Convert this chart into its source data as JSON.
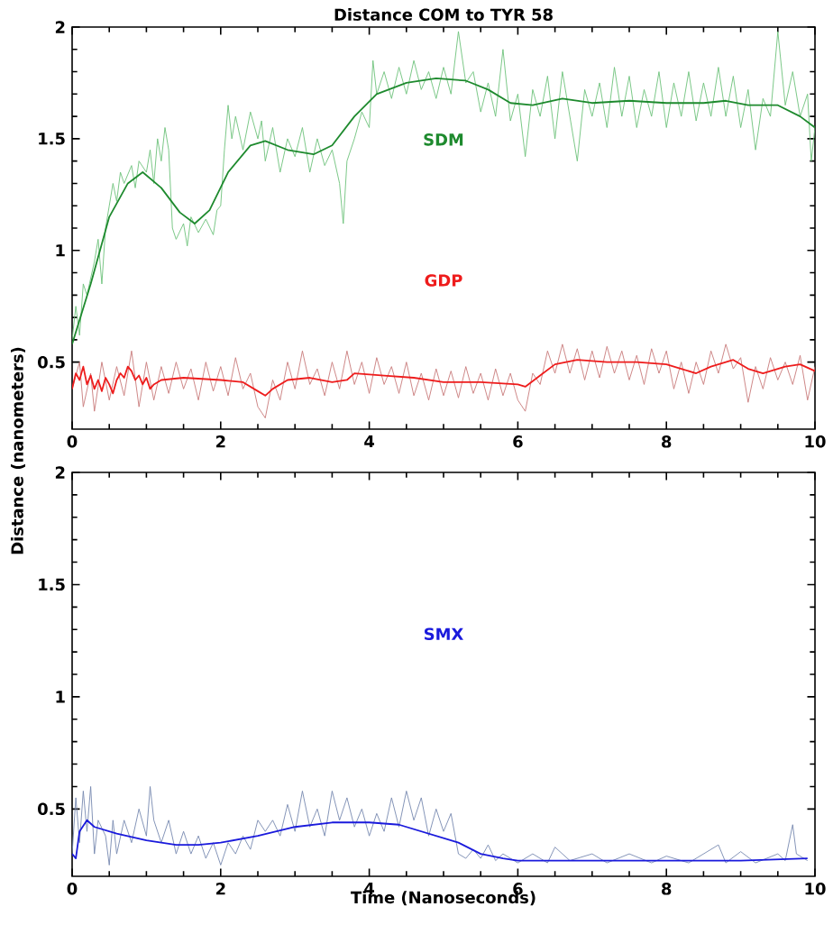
{
  "chart_data": [
    {
      "type": "line",
      "title": "Distance COM to TYR 58",
      "ylabel": "Distance (nanometers)",
      "xlim": [
        0,
        10
      ],
      "ylim": [
        0.2,
        2
      ],
      "xticks": [
        0,
        2,
        4,
        6,
        8,
        10
      ],
      "yticks": [
        0.5,
        1,
        1.5,
        2
      ],
      "series": [
        {
          "color": "#6cc17a",
          "x": [
            0,
            0.05,
            0.1,
            0.15,
            0.2,
            0.3,
            0.35,
            0.4,
            0.45,
            0.5,
            0.55,
            0.6,
            0.65,
            0.7,
            0.8,
            0.85,
            0.9,
            1.0,
            1.05,
            1.1,
            1.15,
            1.2,
            1.25,
            1.3,
            1.35,
            1.4,
            1.5,
            1.55,
            1.6,
            1.7,
            1.8,
            1.9,
            1.95,
            2.0,
            2.05,
            2.1,
            2.15,
            2.2,
            2.3,
            2.4,
            2.5,
            2.55,
            2.6,
            2.7,
            2.8,
            2.9,
            3.0,
            3.1,
            3.2,
            3.3,
            3.4,
            3.5,
            3.6,
            3.65,
            3.7,
            3.8,
            3.9,
            4.0,
            4.05,
            4.1,
            4.2,
            4.3,
            4.4,
            4.5,
            4.6,
            4.7,
            4.8,
            4.9,
            5.0,
            5.1,
            5.2,
            5.3,
            5.4,
            5.5,
            5.6,
            5.7,
            5.8,
            5.9,
            6.0,
            6.1,
            6.2,
            6.3,
            6.4,
            6.5,
            6.6,
            6.7,
            6.8,
            6.9,
            7.0,
            7.1,
            7.2,
            7.3,
            7.4,
            7.5,
            7.6,
            7.7,
            7.8,
            7.9,
            8.0,
            8.1,
            8.2,
            8.3,
            8.4,
            8.5,
            8.6,
            8.7,
            8.8,
            8.9,
            9.0,
            9.1,
            9.2,
            9.3,
            9.4,
            9.5,
            9.6,
            9.7,
            9.8,
            9.9,
            9.95,
            10
          ],
          "values": [
            0.6,
            0.75,
            0.62,
            0.85,
            0.8,
            0.95,
            1.05,
            0.85,
            1.1,
            1.2,
            1.3,
            1.22,
            1.35,
            1.3,
            1.38,
            1.28,
            1.4,
            1.35,
            1.45,
            1.3,
            1.5,
            1.4,
            1.55,
            1.45,
            1.1,
            1.05,
            1.12,
            1.02,
            1.15,
            1.08,
            1.14,
            1.07,
            1.18,
            1.2,
            1.45,
            1.65,
            1.5,
            1.6,
            1.45,
            1.62,
            1.5,
            1.58,
            1.4,
            1.55,
            1.35,
            1.5,
            1.42,
            1.55,
            1.35,
            1.5,
            1.38,
            1.45,
            1.3,
            1.12,
            1.4,
            1.5,
            1.62,
            1.55,
            1.85,
            1.7,
            1.8,
            1.68,
            1.82,
            1.7,
            1.85,
            1.72,
            1.8,
            1.68,
            1.82,
            1.7,
            1.98,
            1.75,
            1.8,
            1.62,
            1.75,
            1.6,
            1.9,
            1.58,
            1.7,
            1.42,
            1.72,
            1.6,
            1.78,
            1.5,
            1.8,
            1.6,
            1.4,
            1.72,
            1.6,
            1.75,
            1.55,
            1.82,
            1.6,
            1.78,
            1.55,
            1.72,
            1.6,
            1.8,
            1.55,
            1.75,
            1.6,
            1.8,
            1.58,
            1.75,
            1.6,
            1.82,
            1.6,
            1.78,
            1.55,
            1.72,
            1.45,
            1.68,
            1.6,
            1.98,
            1.65,
            1.8,
            1.6,
            1.7,
            1.4,
            1.55
          ]
        },
        {
          "name": "SDM",
          "color": "#1e8a2e",
          "x": [
            0,
            0.25,
            0.5,
            0.75,
            0.95,
            1.2,
            1.45,
            1.65,
            1.85,
            2.1,
            2.4,
            2.6,
            2.9,
            3.25,
            3.5,
            3.8,
            4.1,
            4.5,
            4.9,
            5.3,
            5.6,
            5.9,
            6.2,
            6.6,
            7.0,
            7.5,
            8.0,
            8.5,
            8.8,
            9.1,
            9.5,
            9.8,
            10
          ],
          "values": [
            0.58,
            0.85,
            1.15,
            1.3,
            1.35,
            1.28,
            1.17,
            1.12,
            1.18,
            1.35,
            1.47,
            1.49,
            1.45,
            1.43,
            1.47,
            1.6,
            1.7,
            1.75,
            1.77,
            1.76,
            1.72,
            1.66,
            1.65,
            1.68,
            1.66,
            1.67,
            1.66,
            1.66,
            1.67,
            1.65,
            1.65,
            1.6,
            1.55
          ]
        },
        {
          "color": "#c87a7a",
          "x": [
            0,
            0.1,
            0.15,
            0.25,
            0.3,
            0.4,
            0.5,
            0.6,
            0.7,
            0.8,
            0.9,
            1.0,
            1.1,
            1.2,
            1.3,
            1.4,
            1.5,
            1.6,
            1.7,
            1.8,
            1.9,
            2.0,
            2.1,
            2.2,
            2.3,
            2.4,
            2.5,
            2.6,
            2.7,
            2.8,
            2.9,
            3.0,
            3.1,
            3.2,
            3.3,
            3.4,
            3.5,
            3.6,
            3.7,
            3.8,
            3.9,
            4.0,
            4.1,
            4.2,
            4.3,
            4.4,
            4.5,
            4.6,
            4.7,
            4.8,
            4.9,
            5.0,
            5.1,
            5.2,
            5.3,
            5.4,
            5.5,
            5.6,
            5.7,
            5.8,
            5.9,
            6.0,
            6.1,
            6.2,
            6.3,
            6.4,
            6.5,
            6.6,
            6.7,
            6.8,
            6.9,
            7.0,
            7.1,
            7.2,
            7.3,
            7.4,
            7.5,
            7.6,
            7.7,
            7.8,
            7.9,
            8.0,
            8.1,
            8.2,
            8.3,
            8.4,
            8.5,
            8.6,
            8.7,
            8.8,
            8.9,
            9.0,
            9.1,
            9.2,
            9.3,
            9.4,
            9.5,
            9.6,
            9.7,
            9.8,
            9.9,
            10
          ],
          "values": [
            0.38,
            0.5,
            0.3,
            0.45,
            0.28,
            0.5,
            0.33,
            0.48,
            0.35,
            0.55,
            0.3,
            0.5,
            0.33,
            0.48,
            0.36,
            0.5,
            0.38,
            0.47,
            0.33,
            0.5,
            0.37,
            0.48,
            0.35,
            0.52,
            0.38,
            0.45,
            0.3,
            0.25,
            0.42,
            0.33,
            0.5,
            0.38,
            0.55,
            0.4,
            0.47,
            0.35,
            0.5,
            0.38,
            0.55,
            0.4,
            0.5,
            0.36,
            0.52,
            0.4,
            0.48,
            0.36,
            0.5,
            0.35,
            0.45,
            0.33,
            0.47,
            0.35,
            0.46,
            0.34,
            0.48,
            0.36,
            0.45,
            0.33,
            0.47,
            0.35,
            0.45,
            0.33,
            0.28,
            0.45,
            0.4,
            0.55,
            0.45,
            0.58,
            0.45,
            0.56,
            0.42,
            0.55,
            0.43,
            0.57,
            0.45,
            0.55,
            0.42,
            0.53,
            0.4,
            0.56,
            0.45,
            0.55,
            0.38,
            0.5,
            0.36,
            0.5,
            0.4,
            0.55,
            0.45,
            0.58,
            0.47,
            0.52,
            0.32,
            0.48,
            0.38,
            0.52,
            0.42,
            0.5,
            0.4,
            0.53,
            0.33,
            0.48
          ]
        },
        {
          "name": "GDP",
          "color": "#ee1c1c",
          "x": [
            0,
            0.05,
            0.1,
            0.15,
            0.2,
            0.25,
            0.3,
            0.35,
            0.4,
            0.45,
            0.5,
            0.55,
            0.6,
            0.65,
            0.7,
            0.75,
            0.8,
            0.85,
            0.9,
            0.95,
            1.0,
            1.05,
            1.1,
            1.2,
            1.5,
            2.0,
            2.3,
            2.5,
            2.6,
            2.7,
            2.9,
            3.2,
            3.5,
            3.7,
            3.8,
            4.2,
            4.6,
            5.0,
            5.5,
            6.0,
            6.1,
            6.3,
            6.5,
            6.8,
            7.2,
            7.6,
            8.0,
            8.2,
            8.4,
            8.6,
            8.9,
            9.1,
            9.3,
            9.6,
            9.8,
            10
          ],
          "values": [
            0.38,
            0.45,
            0.42,
            0.48,
            0.4,
            0.44,
            0.38,
            0.42,
            0.37,
            0.43,
            0.4,
            0.36,
            0.42,
            0.45,
            0.43,
            0.48,
            0.46,
            0.42,
            0.44,
            0.4,
            0.43,
            0.38,
            0.4,
            0.42,
            0.43,
            0.42,
            0.41,
            0.37,
            0.35,
            0.38,
            0.42,
            0.43,
            0.41,
            0.42,
            0.45,
            0.44,
            0.43,
            0.41,
            0.41,
            0.4,
            0.39,
            0.44,
            0.49,
            0.51,
            0.5,
            0.5,
            0.49,
            0.47,
            0.45,
            0.48,
            0.51,
            0.47,
            0.45,
            0.48,
            0.49,
            0.46
          ]
        }
      ]
    },
    {
      "type": "line",
      "xlabel": "Time (Nanoseconds)",
      "xlim": [
        0,
        10
      ],
      "ylim": [
        0.2,
        2
      ],
      "xticks": [
        0,
        2,
        4,
        6,
        8,
        10
      ],
      "yticks": [
        0.5,
        1,
        1.5,
        2
      ],
      "series": [
        {
          "color": "#7789b0",
          "x": [
            0,
            0.05,
            0.1,
            0.15,
            0.2,
            0.25,
            0.3,
            0.35,
            0.4,
            0.45,
            0.5,
            0.55,
            0.6,
            0.7,
            0.8,
            0.9,
            1.0,
            1.05,
            1.1,
            1.2,
            1.3,
            1.4,
            1.5,
            1.6,
            1.7,
            1.8,
            1.9,
            2.0,
            2.05,
            2.1,
            2.2,
            2.3,
            2.4,
            2.5,
            2.55,
            2.6,
            2.7,
            2.8,
            2.9,
            3.0,
            3.1,
            3.2,
            3.3,
            3.4,
            3.5,
            3.6,
            3.7,
            3.8,
            3.9,
            4.0,
            4.1,
            4.2,
            4.3,
            4.4,
            4.5,
            4.6,
            4.7,
            4.8,
            4.9,
            5.0,
            5.1,
            5.2,
            5.3,
            5.4,
            5.5,
            5.6,
            5.7,
            5.8,
            6.0,
            6.2,
            6.4,
            6.5,
            6.7,
            7.0,
            7.2,
            7.5,
            7.8,
            8.0,
            8.3,
            8.7,
            8.8,
            9.0,
            9.2,
            9.5,
            9.6,
            9.7,
            9.75,
            9.9
          ],
          "values": [
            0.3,
            0.55,
            0.35,
            0.58,
            0.4,
            0.6,
            0.3,
            0.45,
            null,
            0.38,
            0.25,
            0.45,
            0.3,
            0.45,
            0.35,
            0.5,
            0.38,
            0.6,
            0.45,
            0.35,
            0.45,
            0.3,
            0.4,
            0.3,
            0.38,
            0.28,
            0.35,
            0.25,
            null,
            0.35,
            0.3,
            0.38,
            0.32,
            0.45,
            null,
            0.4,
            0.45,
            0.38,
            0.52,
            0.4,
            0.58,
            0.42,
            0.5,
            0.38,
            0.58,
            0.45,
            0.55,
            0.42,
            0.5,
            0.38,
            0.48,
            0.4,
            0.55,
            0.42,
            0.58,
            0.45,
            0.55,
            0.38,
            0.5,
            0.4,
            0.48,
            0.3,
            0.28,
            0.32,
            0.28,
            0.34,
            0.27,
            0.3,
            0.26,
            0.3,
            0.26,
            0.33,
            0.27,
            0.3,
            0.26,
            0.3,
            0.26,
            0.29,
            0.26,
            0.34,
            0.26,
            0.31,
            0.26,
            0.3,
            0.27,
            0.43,
            0.3,
            0.27
          ]
        },
        {
          "name": "SMX",
          "color": "#1a1adc",
          "x": [
            0,
            0.05,
            0.1,
            0.2,
            0.3,
            0.6,
            1.0,
            1.4,
            1.7,
            2.0,
            2.5,
            3.0,
            3.5,
            4.0,
            4.4,
            4.8,
            5.2,
            5.5,
            5.8,
            6.0,
            7.0,
            8.0,
            9.0,
            9.9
          ],
          "values": [
            0.3,
            0.28,
            0.4,
            0.45,
            0.42,
            0.39,
            0.36,
            0.34,
            0.34,
            0.35,
            0.38,
            0.42,
            0.44,
            0.44,
            0.43,
            0.39,
            0.35,
            0.3,
            0.28,
            0.27,
            0.27,
            0.27,
            0.27,
            0.28
          ]
        }
      ]
    }
  ]
}
